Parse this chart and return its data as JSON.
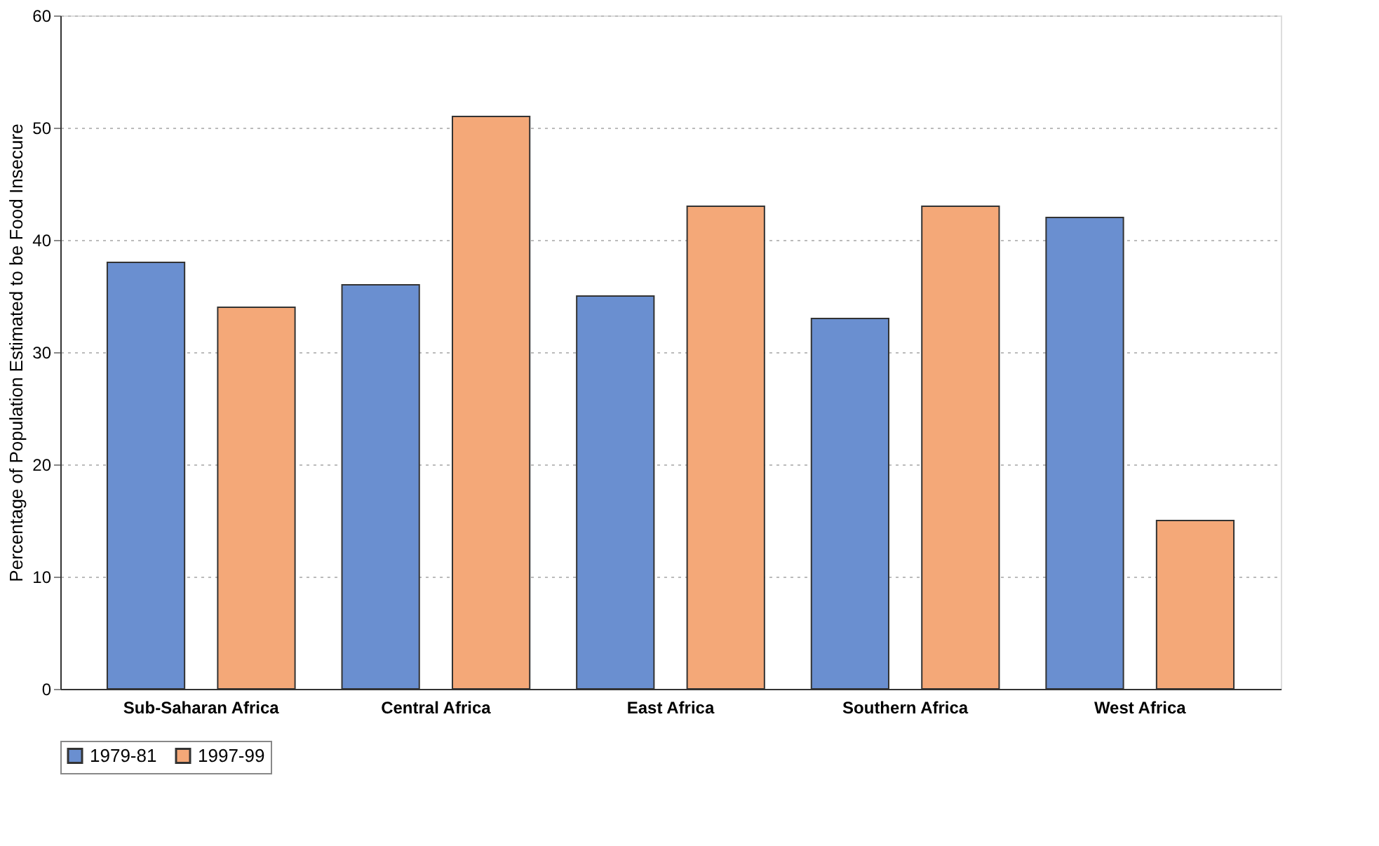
{
  "chart_data": {
    "type": "bar",
    "ylabel": "Percentage of Population Estimated to be Food Insecure",
    "categories": [
      "Sub-Saharan Africa",
      "Central Africa",
      "East Africa",
      "Southern Africa",
      "West Africa"
    ],
    "series": [
      {
        "name": "1979-81",
        "color": "#6a8fd0",
        "values": [
          38,
          36,
          35,
          33,
          42
        ]
      },
      {
        "name": "1997-99",
        "color": "#f4a878",
        "values": [
          34,
          51,
          43,
          43,
          15
        ]
      }
    ],
    "ylim": [
      0,
      60
    ],
    "yticks": [
      0,
      10,
      20,
      30,
      40,
      50,
      60
    ],
    "grid": "y",
    "legend": "bottom"
  }
}
